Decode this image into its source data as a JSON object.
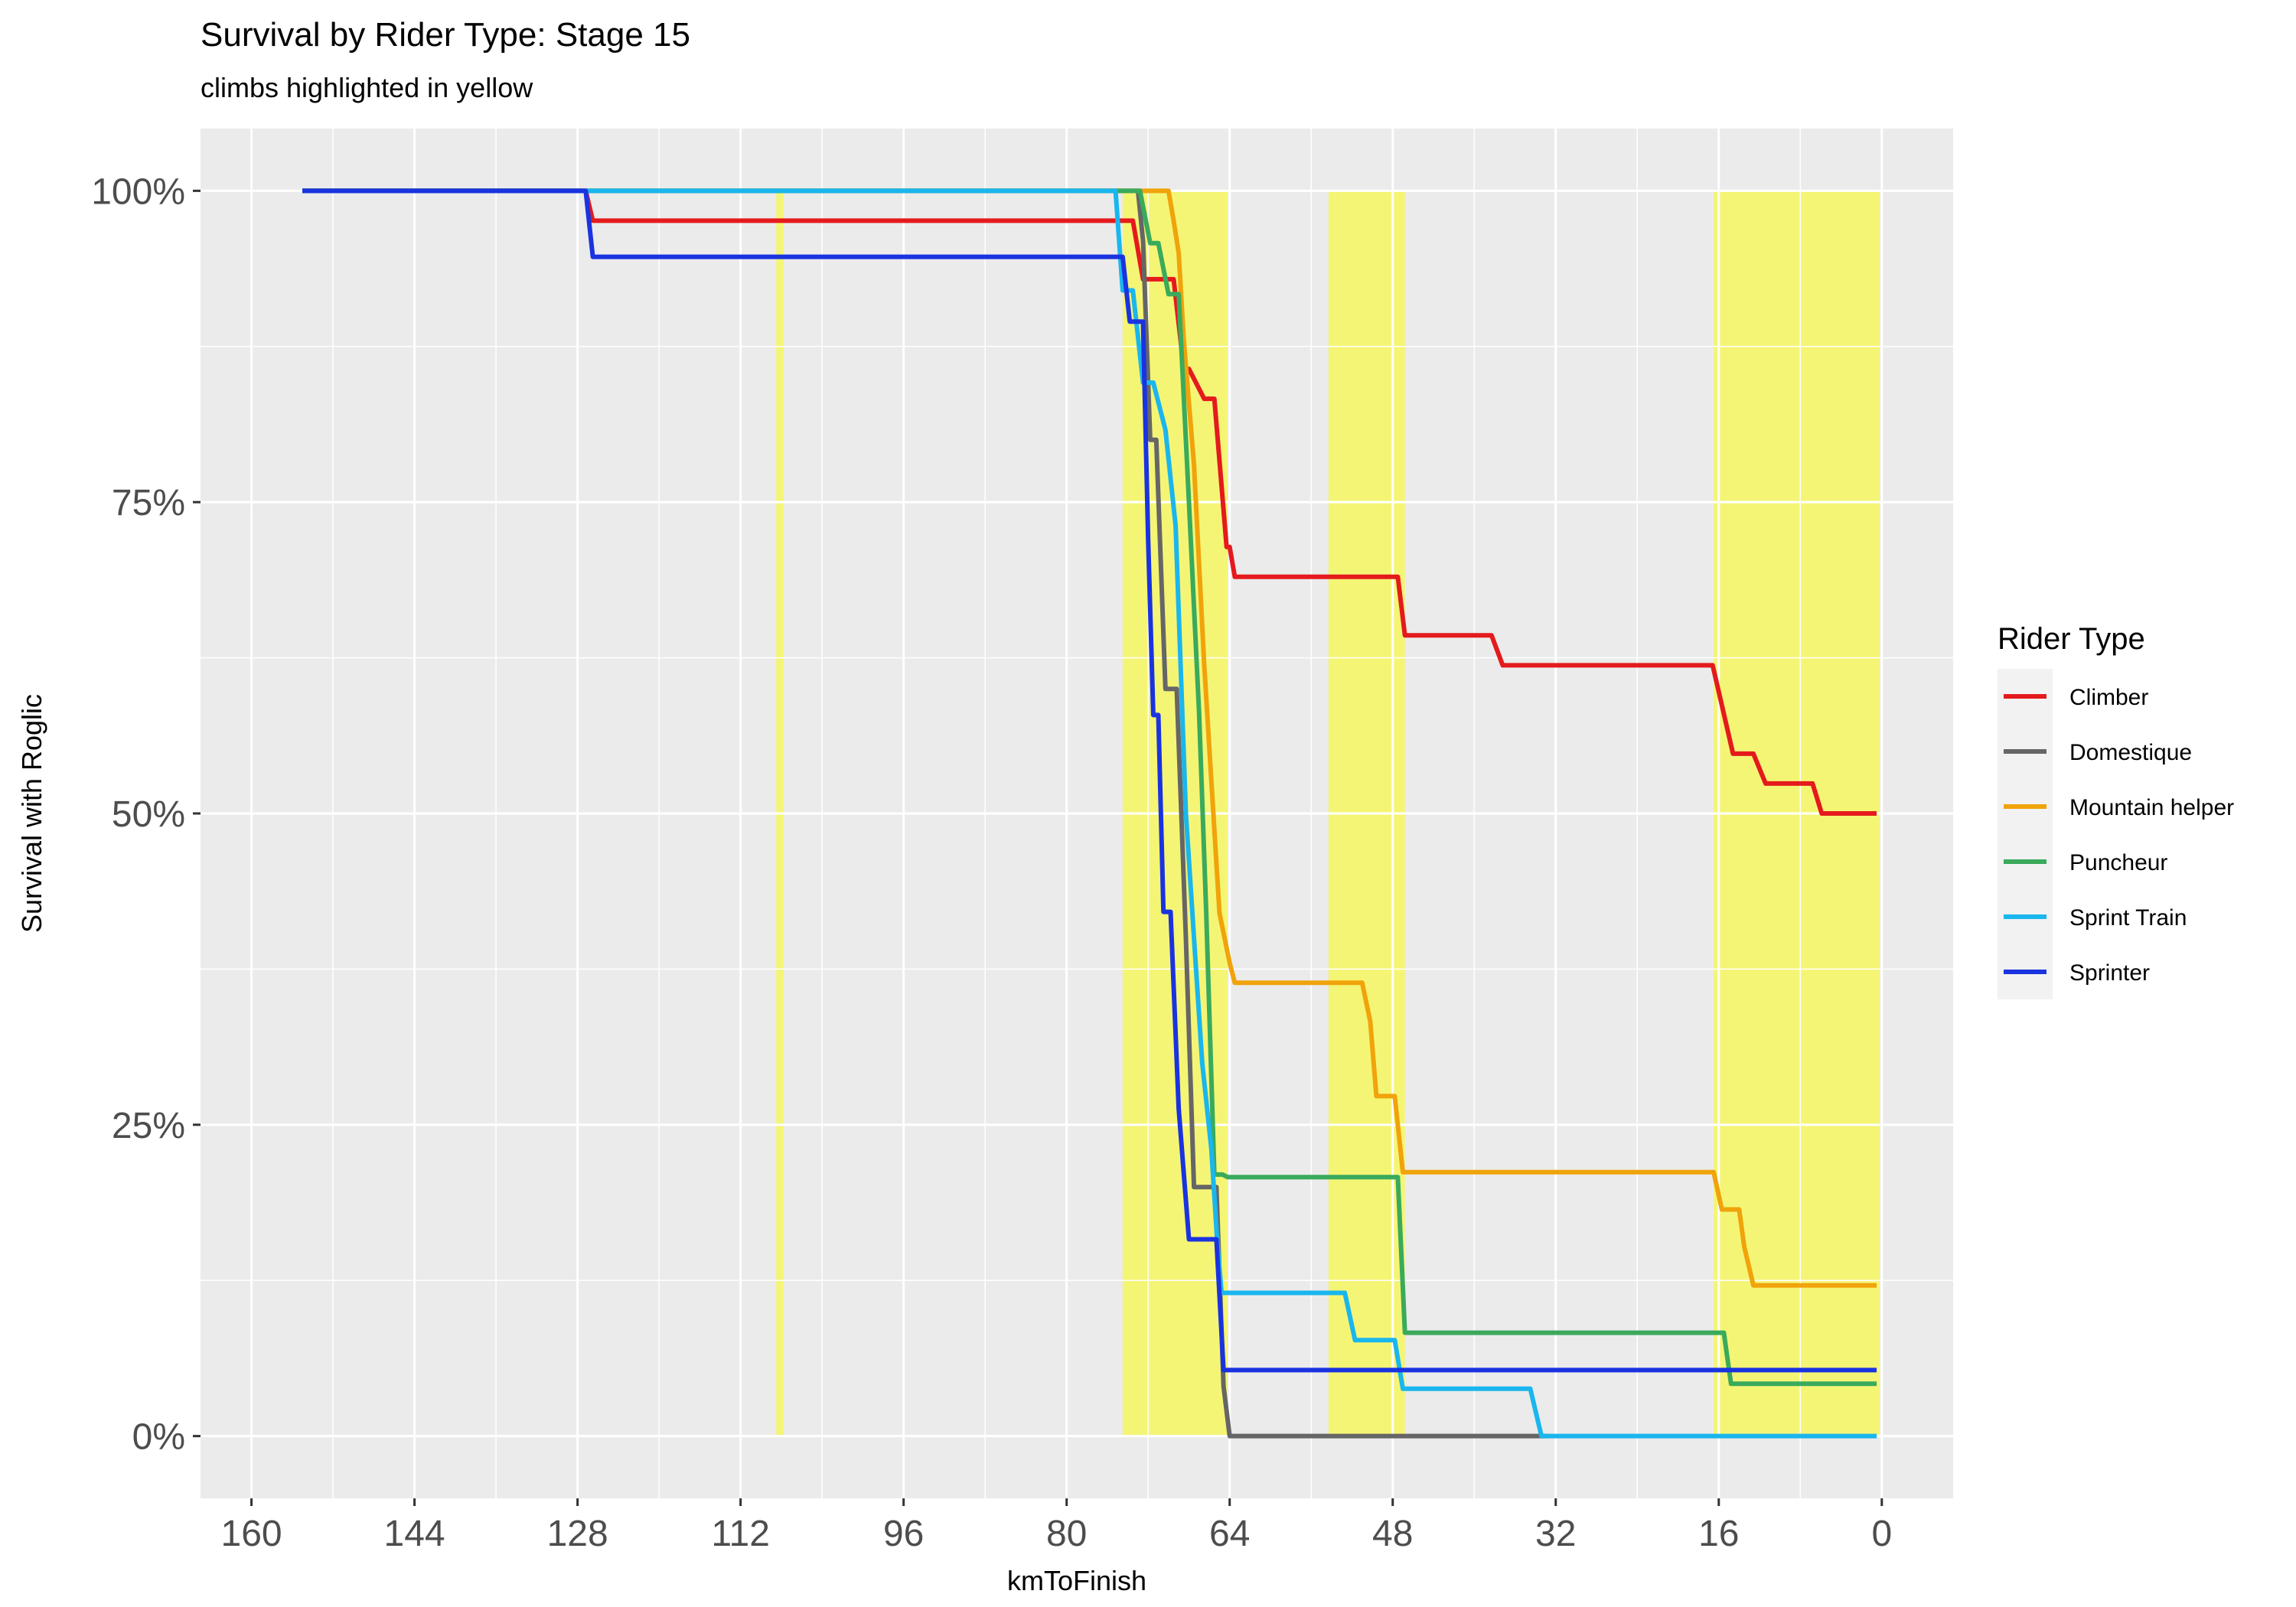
{
  "chart_data": {
    "type": "line",
    "title": "Survival by Rider Type: Stage 15",
    "subtitle": "climbs highlighted in yellow",
    "xlabel": "kmToFinish",
    "ylabel": "Survival with Roglic",
    "xlim": [
      165,
      -7
    ],
    "x_reversed": true,
    "ylim": [
      -0.05,
      1.05
    ],
    "x_ticks": [
      160,
      144,
      128,
      112,
      96,
      80,
      64,
      48,
      32,
      16,
      0
    ],
    "x_tick_labels": [
      "160",
      "144",
      "128",
      "112",
      "96",
      "80",
      "64",
      "48",
      "32",
      "16",
      "0"
    ],
    "y_ticks": [
      0,
      0.25,
      0.5,
      0.75,
      1
    ],
    "y_tick_labels": [
      "0%",
      "25%",
      "50%",
      "75%",
      "100%"
    ],
    "grid": true,
    "legend_title": "Rider Type",
    "legend_position": "right",
    "panel_color": "#ebebeb",
    "highlight_color": "#ffff00",
    "highlights": [
      {
        "from": 108.5,
        "to": 107.8
      },
      {
        "from": 74.5,
        "to": 64.2
      },
      {
        "from": 54.3,
        "to": 46.8
      },
      {
        "from": 16.5,
        "to": 0.2
      }
    ],
    "series": [
      {
        "name": "Climber",
        "color": "#e41a1c",
        "x": [
          155,
          127.2,
          126.5,
          73.5,
          72.5,
          69.5,
          68.5,
          68,
          66.5,
          65.5,
          64.3,
          64,
          63.5,
          47.5,
          46.8,
          38.3,
          37.2,
          16.6,
          14.6,
          12.6,
          11.4,
          10.3,
          6.8,
          5.9,
          0.5
        ],
        "y": [
          1,
          1,
          0.976,
          0.976,
          0.929,
          0.929,
          0.857,
          0.857,
          0.833,
          0.833,
          0.714,
          0.714,
          0.69,
          0.69,
          0.643,
          0.643,
          0.619,
          0.619,
          0.548,
          0.548,
          0.524,
          0.524,
          0.524,
          0.5,
          0.5
        ]
      },
      {
        "name": "Domestique",
        "color": "#666666",
        "x": [
          155,
          73,
          72.5,
          71.8,
          71.2,
          70.3,
          69.2,
          68.3,
          67.5,
          66.8,
          66,
          65.3,
          64.6,
          64,
          33.5,
          32.8
        ],
        "y": [
          1,
          1,
          0.96,
          0.8,
          0.8,
          0.6,
          0.6,
          0.4,
          0.2,
          0.2,
          0.2,
          0.2,
          0.04,
          0,
          0,
          0
        ]
      },
      {
        "name": "Mountain helper",
        "color": "#f0a30a",
        "x": [
          155,
          71,
          70,
          69.5,
          69,
          68.5,
          67.5,
          66.5,
          65,
          64,
          63.5,
          51,
          50.2,
          49.6,
          47.8,
          47,
          16.5,
          15.7,
          14,
          13.5,
          12.6,
          11.5,
          0.5
        ],
        "y": [
          1,
          1,
          1,
          0.976,
          0.95,
          0.88,
          0.78,
          0.62,
          0.42,
          0.38,
          0.364,
          0.364,
          0.333,
          0.273,
          0.273,
          0.212,
          0.212,
          0.182,
          0.182,
          0.152,
          0.121,
          0.121,
          0.121
        ]
      },
      {
        "name": "Puncheur",
        "color": "#3aaa5c",
        "x": [
          155,
          73.5,
          72.8,
          71.8,
          71,
          70,
          69,
          68,
          67,
          66.3,
          65.5,
          64.7,
          64.2,
          47.5,
          46.8,
          15.5,
          14.8,
          0.5
        ],
        "y": [
          1,
          1,
          1,
          0.958,
          0.958,
          0.917,
          0.917,
          0.75,
          0.58,
          0.42,
          0.21,
          0.21,
          0.208,
          0.208,
          0.083,
          0.083,
          0.042,
          0.042
        ]
      },
      {
        "name": "Sprint Train",
        "color": "#1ab6ee",
        "x": [
          155,
          75.2,
          74.5,
          73.5,
          72.5,
          71.5,
          70.3,
          69.3,
          68.3,
          67.5,
          66.7,
          65.8,
          65.2,
          64.8,
          64.6,
          52.7,
          51.7,
          47.8,
          47,
          34.5,
          33.4,
          0.5
        ],
        "y": [
          1,
          1,
          0.92,
          0.92,
          0.846,
          0.846,
          0.808,
          0.731,
          0.5,
          0.4,
          0.3,
          0.231,
          0.154,
          0.115,
          0.115,
          0.115,
          0.077,
          0.077,
          0.038,
          0.038,
          0,
          0
        ]
      },
      {
        "name": "Sprinter",
        "color": "#1a33e0",
        "x": [
          155,
          127.2,
          126.5,
          74.5,
          73.8,
          72.5,
          72,
          71.5,
          71,
          70.5,
          69.8,
          69,
          68,
          67.5,
          66.8,
          66,
          65.3,
          64.6,
          64,
          0.5
        ],
        "y": [
          1,
          1,
          0.947,
          0.947,
          0.895,
          0.895,
          0.72,
          0.579,
          0.579,
          0.421,
          0.421,
          0.263,
          0.158,
          0.158,
          0.158,
          0.158,
          0.158,
          0.053,
          0.053,
          0.053
        ]
      }
    ]
  }
}
